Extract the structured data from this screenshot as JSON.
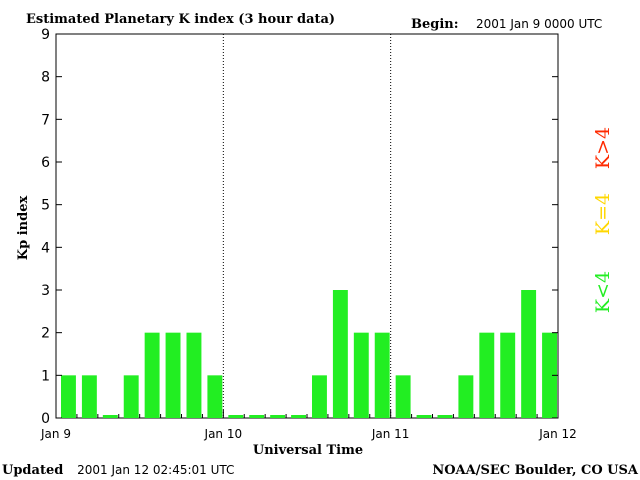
{
  "header": {
    "title": "Estimated Planetary K index (3 hour data)",
    "begin_label": "Begin:",
    "begin_value": "2001 Jan 9 0000 UTC"
  },
  "footer": {
    "updated_label": "Updated",
    "updated_value": "2001 Jan 12 02:45:01 UTC",
    "credit": "NOAA/SEC Boulder, CO USA"
  },
  "legend": [
    {
      "label": "K>4",
      "color": "#ff2a00"
    },
    {
      "label": "K=4",
      "color": "#ffd700"
    },
    {
      "label": "K<4",
      "color": "#22ee22"
    }
  ],
  "chart_data": {
    "type": "bar",
    "title": "Estimated Planetary K index (3 hour data)",
    "xlabel": "Universal Time",
    "ylabel": "Kp index",
    "ylim": [
      0,
      9
    ],
    "yticks": [
      0,
      1,
      2,
      3,
      4,
      5,
      6,
      7,
      8,
      9
    ],
    "xtick_labels": [
      "Jan 9",
      "Jan 10",
      "Jan 11",
      "Jan 12"
    ],
    "interval_hours": 3,
    "values": [
      1,
      1,
      0,
      1,
      2,
      2,
      2,
      1,
      0,
      0,
      0,
      0,
      1,
      3,
      2,
      2,
      1,
      0,
      0,
      1,
      2,
      2,
      3,
      2
    ],
    "bar_color": "#22ee22"
  }
}
